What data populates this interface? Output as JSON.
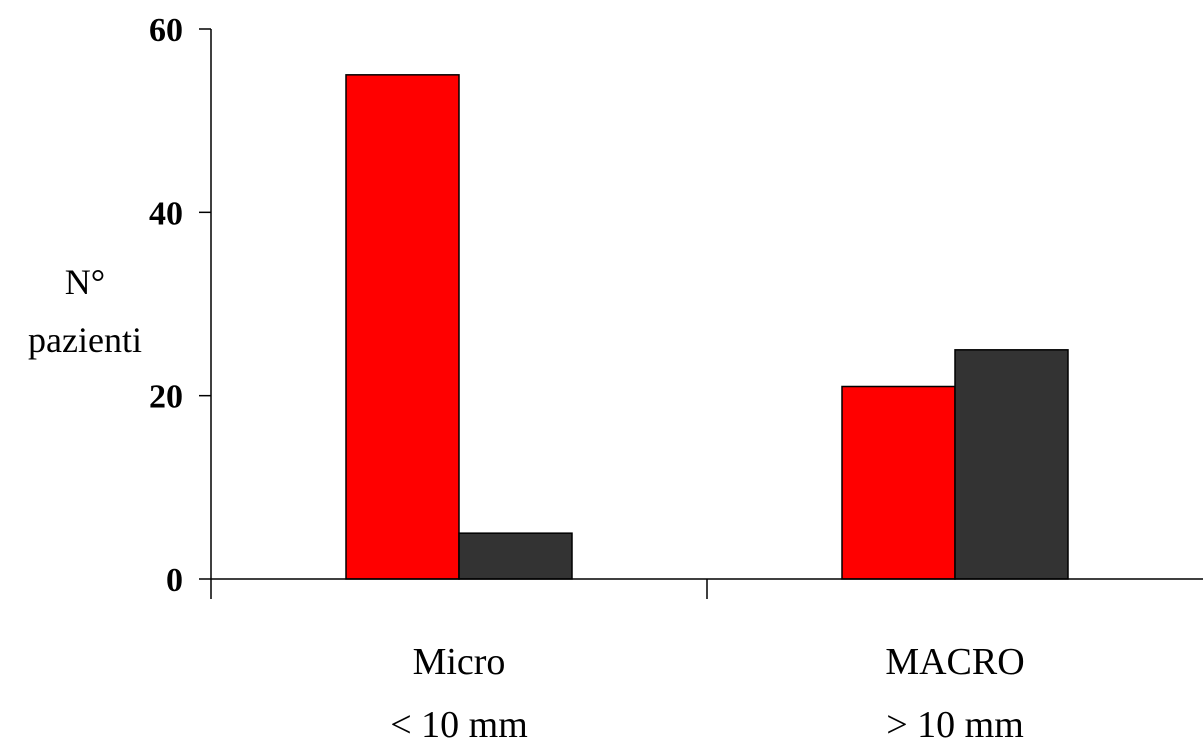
{
  "chart_data": {
    "type": "bar",
    "title": "",
    "ylabel": [
      "N°",
      "pazienti"
    ],
    "ylim": [
      0,
      60
    ],
    "yticks": [
      0,
      20,
      40,
      60
    ],
    "grid": false,
    "legend": "none",
    "categories": [
      {
        "label": "Micro",
        "sublabel": "< 10 mm"
      },
      {
        "label": "MACRO",
        "sublabel": "> 10 mm"
      }
    ],
    "series": [
      {
        "color": "#ff0000",
        "values": [
          55,
          21
        ]
      },
      {
        "color": "#333333",
        "values": [
          5,
          25
        ]
      }
    ]
  }
}
